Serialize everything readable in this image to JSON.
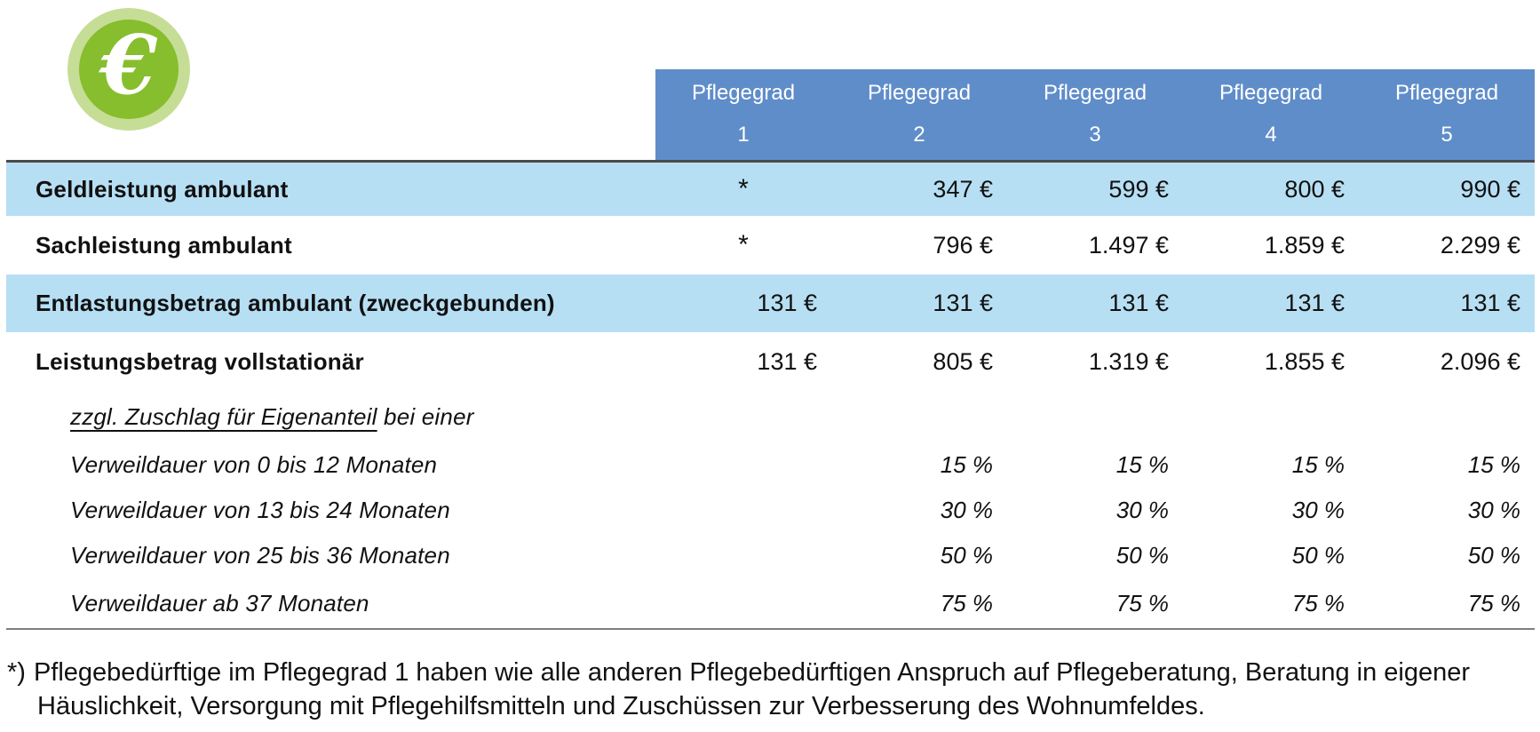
{
  "icon": {
    "name": "euro-icon",
    "symbol": "€",
    "inner_color": "#86BE2D",
    "ring_color": "#C6DD96"
  },
  "colors": {
    "header_bg": "#5F8DC9",
    "header_text": "#FFFFFF",
    "shaded_row_bg": "#B7DFF4",
    "top_rule": "#4A4A4A",
    "bottom_rule": "#7F7F7F",
    "text": "#111111"
  },
  "table": {
    "columns": [
      {
        "line1": "Pflegegrad",
        "line2": "1"
      },
      {
        "line1": "Pflegegrad",
        "line2": "2"
      },
      {
        "line1": "Pflegegrad",
        "line2": "3"
      },
      {
        "line1": "Pflegegrad",
        "line2": "4"
      },
      {
        "line1": "Pflegegrad",
        "line2": "5"
      }
    ],
    "rows": [
      {
        "label": "Geldleistung ambulant",
        "style": "bold",
        "shaded": true,
        "values": [
          "*",
          "347 €",
          "599 €",
          "800 €",
          "990 €"
        ]
      },
      {
        "label": "Sachleistung ambulant",
        "style": "bold",
        "shaded": false,
        "values": [
          "*",
          "796 €",
          "1.497 €",
          "1.859 €",
          "2.299 €"
        ]
      },
      {
        "label": "Entlastungsbetrag ambulant (zweckgebunden)",
        "style": "bold",
        "shaded": true,
        "values": [
          "131 €",
          "131 €",
          "131 €",
          "131 €",
          "131 €"
        ]
      },
      {
        "label": "Leistungsbetrag vollstationär",
        "style": "bold",
        "shaded": false,
        "values": [
          "131 €",
          "805 €",
          "1.319 €",
          "1.855 €",
          "2.096 €"
        ]
      },
      {
        "label_underlined": "zzgl. Zuschlag für Eigenanteil",
        "label": " bei einer",
        "style": "italic",
        "shaded": false,
        "values": [
          "",
          "",
          "",
          "",
          ""
        ]
      },
      {
        "label": "Verweildauer von 0 bis 12 Monaten",
        "style": "italic",
        "shaded": false,
        "values": [
          "",
          "15 %",
          "15 %",
          "15 %",
          "15 %"
        ]
      },
      {
        "label": "Verweildauer von 13 bis 24 Monaten",
        "style": "italic",
        "shaded": false,
        "values": [
          "",
          "30 %",
          "30 %",
          "30 %",
          "30 %"
        ]
      },
      {
        "label": "Verweildauer von 25 bis 36 Monaten",
        "style": "italic",
        "shaded": false,
        "values": [
          "",
          "50 %",
          "50 %",
          "50 %",
          "50 %"
        ]
      },
      {
        "label": "Verweildauer ab 37 Monaten",
        "style": "italic",
        "shaded": false,
        "values": [
          "",
          "75 %",
          "75 %",
          "75 %",
          "75 %"
        ]
      }
    ]
  },
  "footnote": {
    "marker": "*)",
    "text": "Pflegebedürftige im Pflegegrad 1 haben wie alle anderen Pflegebedürftigen Anspruch auf Pflegeberatung, Beratung in eigener Häuslichkeit, Versorgung mit Pflegehilfsmitteln und Zuschüssen zur Verbesserung des Wohnumfeldes."
  }
}
